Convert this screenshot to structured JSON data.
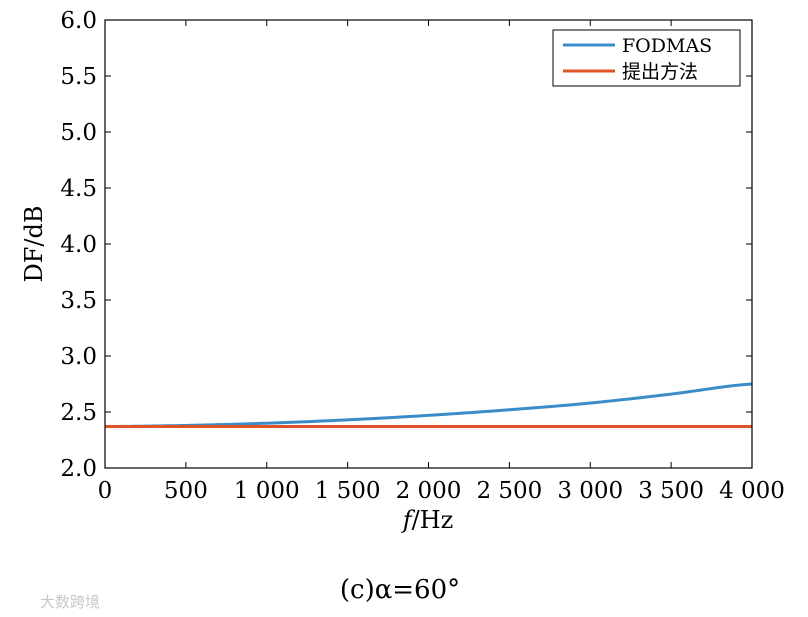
{
  "chart_data": {
    "type": "line",
    "xlabel_italic": "f",
    "xlabel_rest": "/Hz",
    "ylabel": "DF/dB",
    "xlim": [
      0,
      4000
    ],
    "ylim": [
      2.0,
      6.0
    ],
    "x_ticks": [
      0,
      500,
      1000,
      1500,
      2000,
      2500,
      3000,
      3500,
      4000
    ],
    "x_tick_labels": [
      "0",
      "500",
      "1 000",
      "1 500",
      "2 000",
      "2 500",
      "3 000",
      "3 500",
      "4 000"
    ],
    "y_ticks": [
      2.0,
      2.5,
      3.0,
      3.5,
      4.0,
      4.5,
      5.0,
      5.5,
      6.0
    ],
    "y_tick_labels": [
      "2.0",
      "2.5",
      "3.0",
      "3.5",
      "4.0",
      "4.5",
      "5.0",
      "5.5",
      "6.0"
    ],
    "grid": false,
    "legend_position": "top-right",
    "series": [
      {
        "name": "FODMAS",
        "color": "#3a8dc8",
        "x": [
          0,
          500,
          1000,
          1500,
          2000,
          2500,
          3000,
          3500,
          4000
        ],
        "y": [
          2.37,
          2.38,
          2.4,
          2.43,
          2.47,
          2.52,
          2.58,
          2.66,
          2.75
        ]
      },
      {
        "name": "提出方法",
        "color": "#e05528",
        "x": [
          0,
          500,
          1000,
          1500,
          2000,
          2500,
          3000,
          3500,
          4000
        ],
        "y": [
          2.37,
          2.37,
          2.37,
          2.37,
          2.37,
          2.37,
          2.37,
          2.37,
          2.37
        ]
      }
    ]
  },
  "caption": "(c)α=60°",
  "watermark": "大数跨境"
}
